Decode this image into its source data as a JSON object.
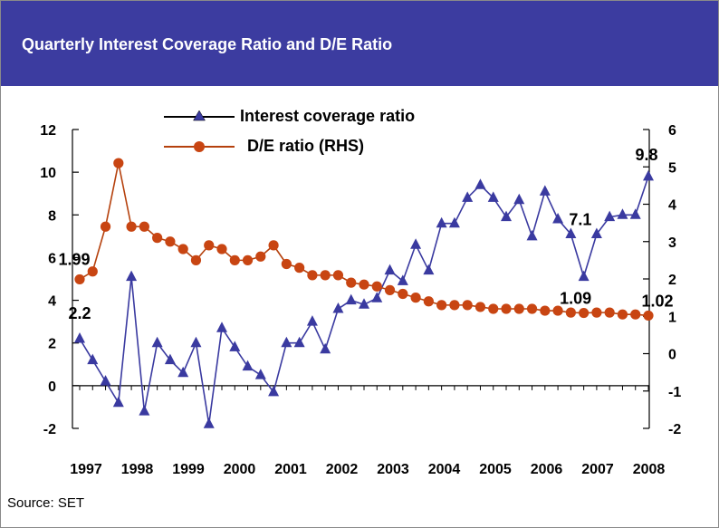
{
  "header": {
    "title": "Quarterly Interest Coverage Ratio and D/E Ratio"
  },
  "source": "Source: SET",
  "colors": {
    "header_bg": "#3c3ca0",
    "icr_line": "#3a3aa0",
    "icr_marker": "#3a3aa0",
    "de_line": "#b5410d",
    "de_marker": "#c84512"
  },
  "chart_data": {
    "type": "line",
    "title": "",
    "x_tick_labels": [
      "1997",
      "1998",
      "1999",
      "2000",
      "2001",
      "2002",
      "2003",
      "2004",
      "2005",
      "2006",
      "2007",
      "2008"
    ],
    "left_axis": {
      "ylim": [
        -2,
        12
      ],
      "ticks": [
        "-2",
        "0",
        "2",
        "4",
        "6",
        "8",
        "10",
        "12"
      ]
    },
    "right_axis": {
      "ylim": [
        -2,
        6
      ],
      "ticks": [
        "-2",
        "-1",
        "0",
        "1",
        "2",
        "3",
        "4",
        "5",
        "6"
      ]
    },
    "legend_position": "top-center",
    "series": [
      {
        "name": "Interest coverage ratio",
        "axis": "left",
        "marker": "triangle",
        "values": [
          2.2,
          1.2,
          0.2,
          -0.8,
          5.1,
          -1.2,
          2.0,
          1.2,
          0.6,
          2.0,
          -1.8,
          2.7,
          1.8,
          0.9,
          0.5,
          -0.3,
          2.0,
          2.0,
          3.0,
          1.7,
          3.6,
          4.0,
          3.8,
          4.1,
          5.4,
          4.9,
          6.6,
          5.4,
          7.6,
          7.6,
          8.8,
          9.4,
          8.8,
          7.9,
          8.7,
          7.0,
          9.1,
          7.8,
          7.1,
          5.1,
          7.1,
          7.9,
          8.0,
          8.0,
          9.8
        ]
      },
      {
        "name": "D/E ratio (RHS)",
        "axis": "right",
        "marker": "circle",
        "values": [
          1.99,
          2.2,
          3.4,
          5.1,
          3.4,
          3.4,
          3.1,
          3.0,
          2.8,
          2.5,
          2.9,
          2.8,
          2.5,
          2.5,
          2.6,
          2.9,
          2.4,
          2.3,
          2.1,
          2.1,
          2.1,
          1.9,
          1.85,
          1.8,
          1.7,
          1.6,
          1.5,
          1.4,
          1.3,
          1.3,
          1.3,
          1.25,
          1.2,
          1.2,
          1.2,
          1.2,
          1.15,
          1.15,
          1.1,
          1.09,
          1.1,
          1.1,
          1.05,
          1.05,
          1.02
        ]
      }
    ],
    "annotations": [
      {
        "series": 0,
        "index": 0,
        "text": "2.2"
      },
      {
        "series": 1,
        "index": 0,
        "text": "1.99"
      },
      {
        "series": 0,
        "index": 40,
        "text": "7.1"
      },
      {
        "series": 0,
        "index": 44,
        "text": "9.8"
      },
      {
        "series": 1,
        "index": 39,
        "text": "1.09"
      },
      {
        "series": 1,
        "index": 44,
        "text": "1.02"
      }
    ]
  }
}
